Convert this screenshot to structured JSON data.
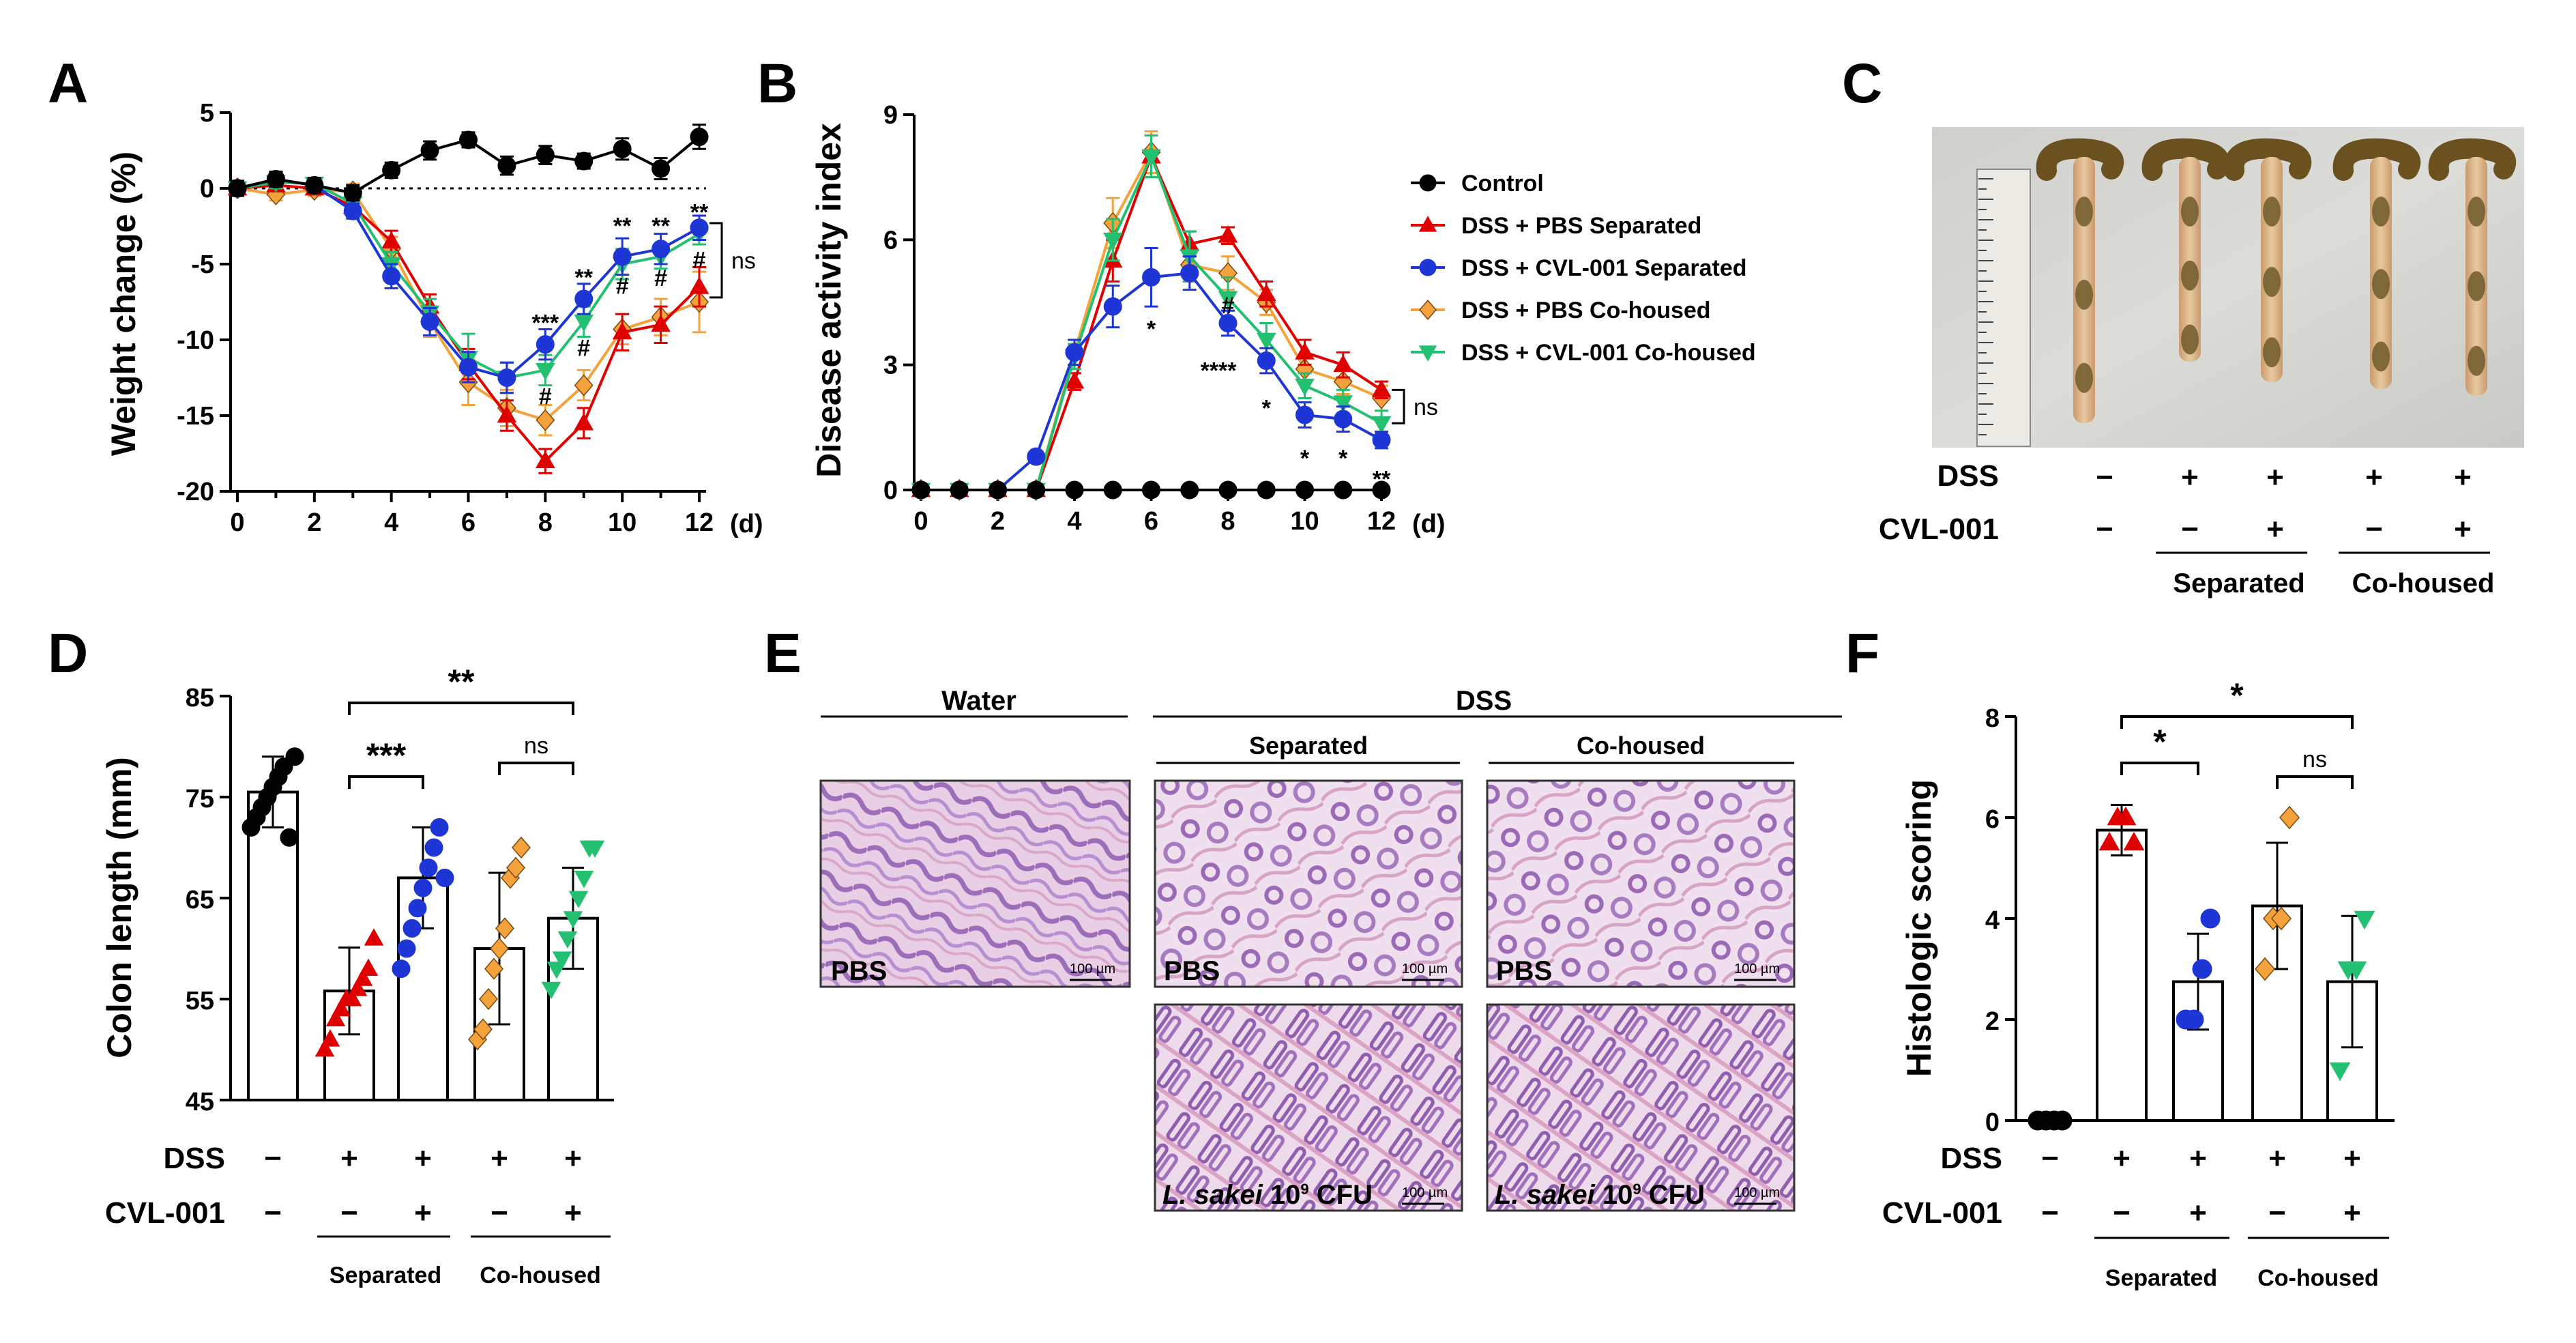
{
  "panel_labels": {
    "a": "A",
    "b": "B",
    "c": "C",
    "d": "D",
    "e": "E",
    "f": "F"
  },
  "colors": {
    "control": "#000000",
    "pbs_sep": "#e00000",
    "cvl_sep": "#1f36d6",
    "pbs_co": "#f4a23c",
    "cvl_co": "#22c070"
  },
  "legend": [
    {
      "key": "control",
      "label": "Control",
      "marker": "circle"
    },
    {
      "key": "pbs_sep",
      "label": "DSS + PBS Separated",
      "marker": "triangle-up"
    },
    {
      "key": "cvl_sep",
      "label": "DSS + CVL-001 Separated",
      "marker": "circle"
    },
    {
      "key": "pbs_co",
      "label": "DSS + PBS Co-housed",
      "marker": "diamond"
    },
    {
      "key": "cvl_co",
      "label": "DSS + CVL-001 Co-housed",
      "marker": "triangle-down"
    }
  ],
  "chart_data": [
    {
      "id": "A",
      "type": "line",
      "ylabel": "Weight change (%)",
      "x_unit": "(d)",
      "x": [
        0,
        1,
        2,
        3,
        4,
        5,
        6,
        7,
        8,
        9,
        10,
        11,
        12
      ],
      "xticks": [
        "0",
        "2",
        "4",
        "6",
        "8",
        "10",
        "12"
      ],
      "yticks": [
        "5",
        "0",
        "-5",
        "-10",
        "-15",
        "-20"
      ],
      "ylim": [
        -20,
        5
      ],
      "reference_line": 0,
      "series": [
        {
          "key": "control",
          "values": [
            0,
            0.6,
            0.2,
            -0.3,
            1.2,
            2.5,
            3.2,
            1.5,
            2.2,
            1.8,
            2.6,
            1.3,
            3.4
          ],
          "err": [
            0.5,
            0.5,
            0.5,
            0.5,
            0.5,
            0.6,
            0.5,
            0.6,
            0.6,
            0.5,
            0.7,
            0.7,
            0.8
          ]
        },
        {
          "key": "pbs_sep",
          "values": [
            0,
            0.2,
            0,
            -1.2,
            -3.5,
            -7.8,
            -11.6,
            -15,
            -18,
            -15.5,
            -9.5,
            -9,
            -6.5
          ],
          "err": [
            0.3,
            0.4,
            0.4,
            0.5,
            0.7,
            0.8,
            1.0,
            1.0,
            0.8,
            1.0,
            1.2,
            1.2,
            1.3
          ]
        },
        {
          "key": "cvl_sep",
          "values": [
            0,
            0.6,
            0.2,
            -1.5,
            -5.8,
            -8.8,
            -11.8,
            -12.5,
            -10.3,
            -7.3,
            -4.5,
            -4.0,
            -2.6
          ],
          "err": [
            0.3,
            0.4,
            0.4,
            0.5,
            0.8,
            0.9,
            1.0,
            1.0,
            1.0,
            1.0,
            1.2,
            1.0,
            0.8
          ]
        },
        {
          "key": "pbs_co",
          "values": [
            0,
            -0.4,
            -0.1,
            -0.2,
            -4.0,
            -8.8,
            -12.8,
            -14.5,
            -15.3,
            -13,
            -9.3,
            -8.5,
            -7.5
          ],
          "err": [
            0.3,
            0.4,
            0.4,
            0.5,
            0.8,
            1.0,
            1.5,
            1.2,
            1.0,
            1.0,
            1.0,
            1.2,
            2.0
          ]
        },
        {
          "key": "cvl_co",
          "values": [
            0,
            0.4,
            0.3,
            -1.0,
            -5.0,
            -8.2,
            -11.2,
            -12.5,
            -12.0,
            -8.8,
            -5.0,
            -4.5,
            -3.0
          ],
          "err": [
            0.3,
            0.4,
            0.4,
            0.5,
            0.8,
            0.9,
            1.6,
            1.0,
            1.0,
            1.0,
            1.0,
            0.8,
            0.7
          ]
        }
      ],
      "annotations": [
        {
          "x": 8,
          "y": -8.5,
          "text": "***"
        },
        {
          "x": 9,
          "y": -5.5,
          "text": "**"
        },
        {
          "x": 10,
          "y": -2.1,
          "text": "**"
        },
        {
          "x": 11,
          "y": -2.1,
          "text": "**"
        },
        {
          "x": 12,
          "y": -1.2,
          "text": "**"
        },
        {
          "x": 8,
          "y": -13.8,
          "text": "#"
        },
        {
          "x": 9,
          "y": -10.6,
          "text": "#"
        },
        {
          "x": 10,
          "y": -6.5,
          "text": "#"
        },
        {
          "x": 11,
          "y": -6.0,
          "text": "#"
        },
        {
          "x": 12,
          "y": -4.8,
          "text": "#"
        }
      ],
      "bracket_label": "ns"
    },
    {
      "id": "B",
      "type": "line",
      "ylabel": "Disease activity index",
      "x_unit": "(d)",
      "x": [
        0,
        1,
        2,
        3,
        4,
        5,
        6,
        7,
        8,
        9,
        10,
        11,
        12
      ],
      "xticks": [
        "0",
        "2",
        "4",
        "6",
        "8",
        "10",
        "12"
      ],
      "yticks": [
        "9",
        "6",
        "3",
        "0"
      ],
      "ylim": [
        0,
        9
      ],
      "series": [
        {
          "key": "control",
          "values": [
            0,
            0,
            0,
            0,
            0,
            0,
            0,
            0,
            0,
            0,
            0,
            0,
            0
          ],
          "err": [
            0,
            0,
            0,
            0,
            0,
            0,
            0,
            0,
            0,
            0,
            0,
            0,
            0
          ]
        },
        {
          "key": "pbs_sep",
          "values": [
            0,
            0,
            0,
            0,
            2.6,
            5.5,
            8.0,
            5.9,
            6.1,
            4.7,
            3.3,
            3.0,
            2.4
          ],
          "err": [
            0,
            0,
            0,
            0,
            0.2,
            0.5,
            0.5,
            0.3,
            0.2,
            0.3,
            0.3,
            0.3,
            0.2
          ]
        },
        {
          "key": "cvl_sep",
          "values": [
            0,
            0,
            0,
            0.8,
            3.3,
            4.4,
            5.1,
            5.2,
            4.0,
            3.1,
            1.8,
            1.7,
            1.2
          ],
          "err": [
            0,
            0,
            0,
            0.1,
            0.3,
            0.5,
            0.7,
            0.4,
            0.3,
            0.3,
            0.3,
            0.3,
            0.2
          ]
        },
        {
          "key": "pbs_co",
          "values": [
            0,
            0,
            0,
            0,
            3.3,
            6.4,
            8.1,
            5.4,
            5.2,
            4.5,
            2.9,
            2.6,
            2.2
          ],
          "err": [
            0,
            0,
            0,
            0,
            0.3,
            0.6,
            0.5,
            0.4,
            0.4,
            0.3,
            0.3,
            0.3,
            0.3
          ]
        },
        {
          "key": "cvl_co",
          "values": [
            0,
            0,
            0,
            0,
            3.2,
            6.0,
            8.0,
            5.6,
            4.6,
            3.6,
            2.5,
            2.1,
            1.6
          ],
          "err": [
            0,
            0,
            0,
            0,
            0.3,
            0.5,
            0.5,
            0.6,
            0.5,
            0.4,
            0.3,
            0.3,
            0.3
          ]
        }
      ],
      "annotations": [
        {
          "x": 6,
          "y": 4.0,
          "text": "*"
        },
        {
          "x": 8,
          "y": 3.0,
          "text": "****"
        },
        {
          "x": 9,
          "y": 2.1,
          "text": "*"
        },
        {
          "x": 10,
          "y": 0.9,
          "text": "*"
        },
        {
          "x": 11,
          "y": 0.9,
          "text": "*"
        },
        {
          "x": 12,
          "y": 0.4,
          "text": "**"
        },
        {
          "x": 8,
          "y": 4.4,
          "text": "#"
        }
      ],
      "bracket_label": "ns"
    },
    {
      "id": "D",
      "type": "bar",
      "ylabel": "Colon length (mm)",
      "yticks": [
        "85",
        "75",
        "65",
        "55",
        "45"
      ],
      "ylim": [
        45,
        85
      ],
      "groups": [
        {
          "key": "control",
          "mean": 75.5,
          "sd": 3.5,
          "points": [
            72,
            73,
            74,
            75,
            76,
            77,
            78,
            71,
            79
          ]
        },
        {
          "key": "pbs_sep",
          "mean": 55.8,
          "sd": 4.3,
          "points": [
            50,
            51,
            53,
            54,
            55,
            55,
            56,
            57,
            58,
            61
          ]
        },
        {
          "key": "cvl_sep",
          "mean": 67,
          "sd": 5,
          "points": [
            58,
            60,
            62,
            64,
            66,
            68,
            70,
            72,
            67
          ]
        },
        {
          "key": "pbs_co",
          "mean": 60,
          "sd": 7.5,
          "points": [
            51,
            52,
            55,
            58,
            60,
            62,
            67,
            68,
            70
          ]
        },
        {
          "key": "cvl_co",
          "mean": 63,
          "sd": 5,
          "points": [
            56,
            58,
            59,
            61,
            63,
            65,
            67,
            70,
            70
          ]
        }
      ],
      "comparisons": [
        {
          "from": 1,
          "to": 2,
          "label": "***"
        },
        {
          "from": 1,
          "to": 4,
          "label": "**"
        },
        {
          "from": 3,
          "to": 4,
          "label": "ns"
        }
      ]
    },
    {
      "id": "F",
      "type": "bar",
      "ylabel": "Histologic scoring",
      "yticks": [
        "8",
        "6",
        "4",
        "2",
        "0"
      ],
      "ylim": [
        0,
        8
      ],
      "groups": [
        {
          "key": "control",
          "mean": 0,
          "sd": 0,
          "points": [
            0,
            0,
            0,
            0
          ]
        },
        {
          "key": "pbs_sep",
          "mean": 5.75,
          "sd": 0.5,
          "points": [
            5.5,
            6,
            6,
            5.5
          ]
        },
        {
          "key": "cvl_sep",
          "mean": 2.75,
          "sd": 0.95,
          "points": [
            2,
            2,
            3,
            4
          ]
        },
        {
          "key": "pbs_co",
          "mean": 4.25,
          "sd": 1.25,
          "points": [
            3,
            4,
            4,
            6
          ]
        },
        {
          "key": "cvl_co",
          "mean": 2.75,
          "sd": 1.3,
          "points": [
            1,
            3,
            3,
            4
          ]
        }
      ],
      "comparisons": [
        {
          "from": 1,
          "to": 2,
          "label": "*"
        },
        {
          "from": 1,
          "to": 4,
          "label": "*"
        },
        {
          "from": 3,
          "to": 4,
          "label": "ns"
        }
      ]
    }
  ],
  "treatment_table": {
    "dss_label": "DSS",
    "cvl_label": "CVL-001",
    "dss_row": [
      "−",
      "+",
      "+",
      "+",
      "+"
    ],
    "cvl_row": [
      "−",
      "−",
      "+",
      "−",
      "+"
    ],
    "group_separated": "Separated",
    "group_cohoused": "Co-housed"
  },
  "panel_e": {
    "water": "Water",
    "dss": "DSS",
    "separated": "Separated",
    "cohoused": "Co-housed",
    "pbs": "PBS",
    "lsakei": "L. sakei",
    "dose": "10",
    "dose_exp": "9",
    "cfu": "CFU",
    "scale": "100 µm"
  }
}
